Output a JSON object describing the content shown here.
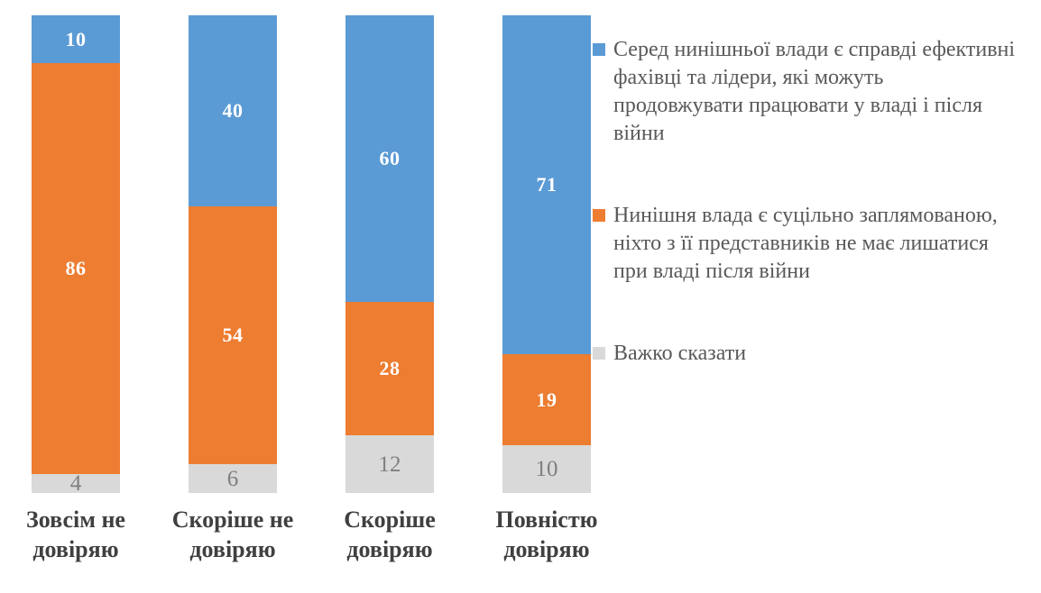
{
  "chart_data": {
    "type": "bar",
    "variant": "stacked-column",
    "title": "",
    "xlabel": "",
    "ylabel": "",
    "ylim": [
      0,
      100
    ],
    "grid": false,
    "legend_position": "right",
    "categories": [
      "Зовсім не довіряю",
      "Скоріше не довіряю",
      "Скоріше довіряю",
      "Повністю довіряю"
    ],
    "series": [
      {
        "name": "Серед нинішньої влади є справді ефективні фахівці та лідери, які можуть продовжувати працювати у владі і після війни",
        "color": "#5B9BD5",
        "label_color": "#FFFFFF",
        "label_style": "bold",
        "values": [
          10,
          40,
          60,
          71
        ]
      },
      {
        "name": "Нинішня влада є суцільно заплямованою, ніхто з її представників не має лишатися при владі після війни",
        "color": "#ED7D31",
        "label_color": "#FFFFFF",
        "label_style": "bold",
        "values": [
          86,
          54,
          28,
          19
        ]
      },
      {
        "name": "Важко сказати",
        "color": "#D9D9D9",
        "label_color": "#7F7F7F",
        "label_style": "normal",
        "values": [
          4,
          6,
          12,
          10
        ]
      }
    ]
  },
  "style_colors": {
    "category_label": "#404040",
    "legend_text": "#595959",
    "background": "#FFFFFF"
  }
}
